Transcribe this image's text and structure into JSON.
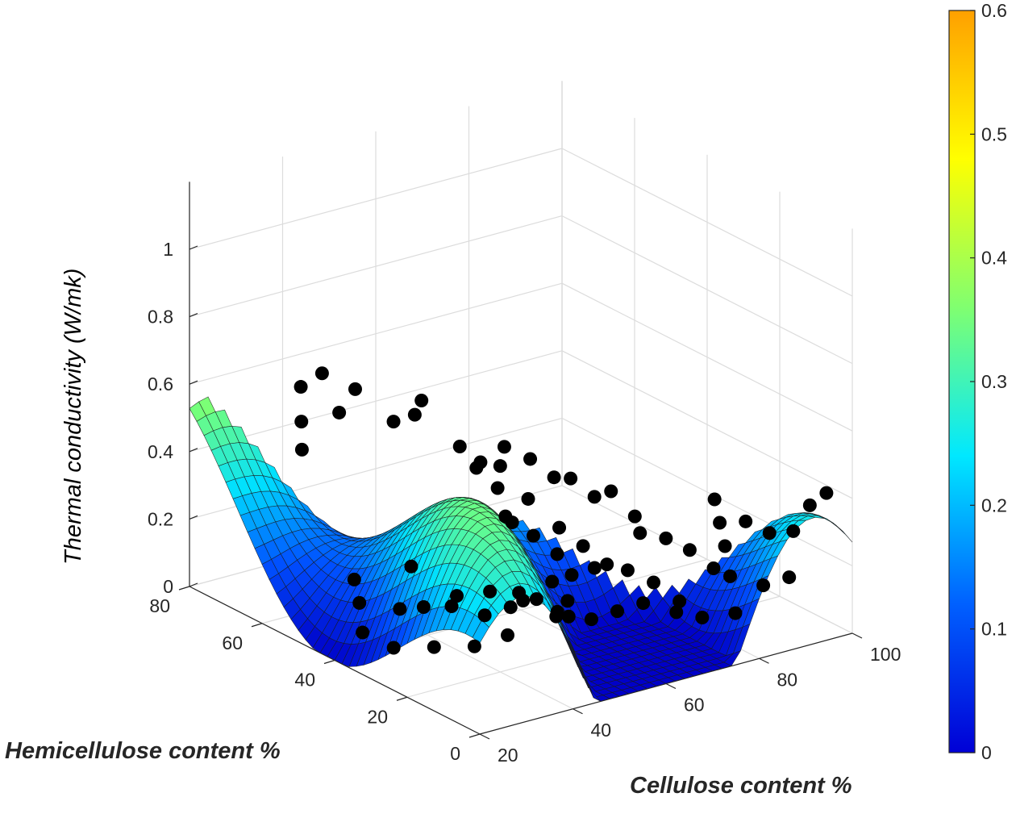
{
  "chart_data": {
    "type": "surface",
    "xlabel": "Cellulose content %",
    "ylabel": "Hemicellulose content %",
    "zlabel": "Thermal conductivity (W/mk)",
    "xlim": [
      20,
      100
    ],
    "ylim": [
      0,
      80
    ],
    "zlim": [
      0,
      1.2
    ],
    "xticks": [
      "20",
      "40",
      "60",
      "80",
      "100"
    ],
    "yticks": [
      "0",
      "20",
      "40",
      "60",
      "80"
    ],
    "zticks": [
      "0",
      "0.2",
      "0.4",
      "0.6",
      "0.8",
      "1"
    ],
    "colorbar": {
      "ticks": [
        "0",
        "0.1",
        "0.2",
        "0.3",
        "0.4",
        "0.5",
        "0.6"
      ],
      "range": [
        0,
        0.6
      ],
      "colormap": [
        "#0000d6",
        "#0060ff",
        "#00e8ff",
        "#80ff70",
        "#ffff00",
        "#ffa000"
      ]
    },
    "surface_colormap": [
      "#0000c8",
      "#0050ff",
      "#00e0ff",
      "#70ff80",
      "#ffff00",
      "#ff9000",
      "#e01000",
      "#800000"
    ],
    "grid": true,
    "scatter_color": "#000000",
    "surface_note": "smooth fitted surface with sinusoidal ridges; peak about 1.2 at Cellulose 100 %, Hemicellulose 80 %; empty where Cellulose plus Hemicellulose exceeds 100 %",
    "scatter_points": [
      {
        "x": 27,
        "y": 58,
        "z": 0.5
      },
      {
        "x": 30,
        "y": 62,
        "z": 0.55
      },
      {
        "x": 35,
        "y": 58,
        "z": 0.58
      },
      {
        "x": 33,
        "y": 66,
        "z": 0.62
      },
      {
        "x": 36,
        "y": 64,
        "z": 0.66
      },
      {
        "x": 40,
        "y": 60,
        "z": 0.62
      },
      {
        "x": 42,
        "y": 52,
        "z": 0.56
      },
      {
        "x": 45,
        "y": 50,
        "z": 0.58
      },
      {
        "x": 48,
        "y": 52,
        "z": 0.6
      },
      {
        "x": 50,
        "y": 44,
        "z": 0.5
      },
      {
        "x": 52,
        "y": 42,
        "z": 0.44
      },
      {
        "x": 55,
        "y": 40,
        "z": 0.38
      },
      {
        "x": 55,
        "y": 36,
        "z": 0.3
      },
      {
        "x": 58,
        "y": 34,
        "z": 0.26
      },
      {
        "x": 60,
        "y": 30,
        "z": 0.22
      },
      {
        "x": 62,
        "y": 32,
        "z": 0.28
      },
      {
        "x": 64,
        "y": 28,
        "z": 0.24
      },
      {
        "x": 66,
        "y": 24,
        "z": 0.2
      },
      {
        "x": 60,
        "y": 26,
        "z": 0.18
      },
      {
        "x": 56,
        "y": 22,
        "z": 0.14
      },
      {
        "x": 52,
        "y": 20,
        "z": 0.12
      },
      {
        "x": 48,
        "y": 24,
        "z": 0.16
      },
      {
        "x": 44,
        "y": 28,
        "z": 0.18
      },
      {
        "x": 40,
        "y": 32,
        "z": 0.16
      },
      {
        "x": 36,
        "y": 36,
        "z": 0.12
      },
      {
        "x": 34,
        "y": 40,
        "z": 0.1
      },
      {
        "x": 30,
        "y": 46,
        "z": 0.1
      },
      {
        "x": 32,
        "y": 50,
        "z": 0.14
      },
      {
        "x": 38,
        "y": 42,
        "z": 0.2
      },
      {
        "x": 42,
        "y": 36,
        "z": 0.1
      },
      {
        "x": 46,
        "y": 32,
        "z": 0.08
      },
      {
        "x": 50,
        "y": 30,
        "z": 0.1
      },
      {
        "x": 54,
        "y": 28,
        "z": 0.12
      },
      {
        "x": 58,
        "y": 18,
        "z": 0.1
      },
      {
        "x": 62,
        "y": 16,
        "z": 0.12
      },
      {
        "x": 66,
        "y": 14,
        "z": 0.14
      },
      {
        "x": 70,
        "y": 20,
        "z": 0.3
      },
      {
        "x": 72,
        "y": 24,
        "z": 0.32
      },
      {
        "x": 74,
        "y": 18,
        "z": 0.28
      },
      {
        "x": 76,
        "y": 14,
        "z": 0.26
      },
      {
        "x": 78,
        "y": 10,
        "z": 0.22
      },
      {
        "x": 80,
        "y": 8,
        "z": 0.2
      },
      {
        "x": 82,
        "y": 12,
        "z": 0.26
      },
      {
        "x": 84,
        "y": 16,
        "z": 0.3
      },
      {
        "x": 86,
        "y": 20,
        "z": 0.34
      },
      {
        "x": 88,
        "y": 14,
        "z": 0.3
      },
      {
        "x": 90,
        "y": 10,
        "z": 0.28
      },
      {
        "x": 92,
        "y": 6,
        "z": 0.3
      },
      {
        "x": 94,
        "y": 4,
        "z": 0.38
      },
      {
        "x": 96,
        "y": 2,
        "z": 0.42
      },
      {
        "x": 68,
        "y": 30,
        "z": 0.36
      },
      {
        "x": 64,
        "y": 36,
        "z": 0.4
      },
      {
        "x": 60,
        "y": 38,
        "z": 0.34
      },
      {
        "x": 56,
        "y": 46,
        "z": 0.42
      },
      {
        "x": 70,
        "y": 10,
        "z": 0.12
      },
      {
        "x": 74,
        "y": 8,
        "z": 0.1
      },
      {
        "x": 78,
        "y": 4,
        "z": 0.12
      },
      {
        "x": 84,
        "y": 4,
        "z": 0.18
      },
      {
        "x": 88,
        "y": 2,
        "z": 0.2
      },
      {
        "x": 50,
        "y": 14,
        "z": 0.16
      },
      {
        "x": 46,
        "y": 12,
        "z": 0.2
      },
      {
        "x": 40,
        "y": 18,
        "z": 0.12
      },
      {
        "x": 36,
        "y": 22,
        "z": 0.08
      },
      {
        "x": 32,
        "y": 28,
        "z": 0.06
      },
      {
        "x": 28,
        "y": 34,
        "z": 0.04
      },
      {
        "x": 26,
        "y": 40,
        "z": 0.06
      },
      {
        "x": 44,
        "y": 20,
        "z": 0.22
      },
      {
        "x": 48,
        "y": 16,
        "z": 0.26
      },
      {
        "x": 54,
        "y": 12,
        "z": 0.3
      },
      {
        "x": 58,
        "y": 8,
        "z": 0.3
      },
      {
        "x": 62,
        "y": 6,
        "z": 0.26
      },
      {
        "x": 66,
        "y": 4,
        "z": 0.2
      },
      {
        "x": 52,
        "y": 34,
        "z": 0.34
      },
      {
        "x": 54,
        "y": 38,
        "z": 0.46
      },
      {
        "x": 58,
        "y": 42,
        "z": 0.48
      },
      {
        "x": 62,
        "y": 40,
        "z": 0.44
      },
      {
        "x": 66,
        "y": 34,
        "z": 0.4
      },
      {
        "x": 70,
        "y": 28,
        "z": 0.38
      }
    ]
  }
}
